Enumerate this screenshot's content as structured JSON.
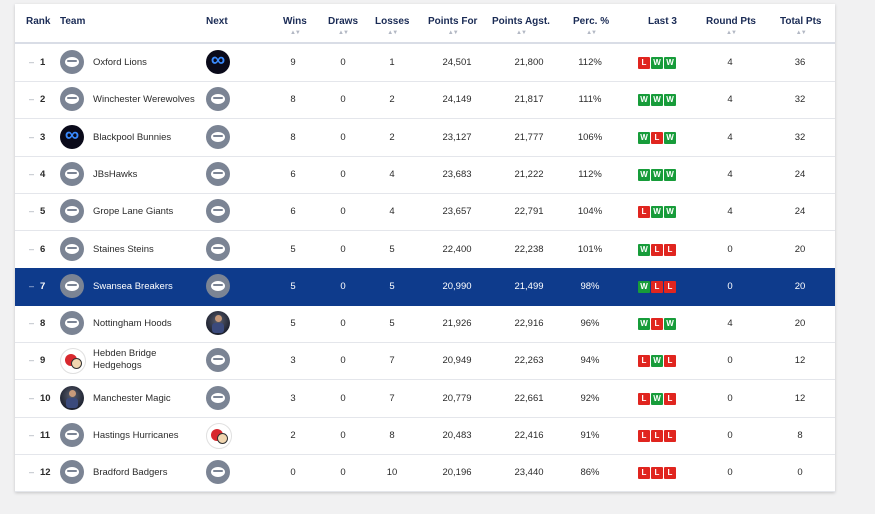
{
  "columns": {
    "rank": "Rank",
    "team": "Team",
    "next": "Next",
    "wins": "Wins",
    "draws": "Draws",
    "losses": "Losses",
    "points_for": "Points For",
    "points_against": "Points Agst.",
    "percentage": "Perc. %",
    "last3": "Last 3",
    "round_pts": "Round Pts",
    "total_pts": "Total Pts"
  },
  "rank_marker": "–",
  "sort_glyph": "▲▼",
  "colors": {
    "highlight_row": "#0e3b8c",
    "win_badge": "#179c3a",
    "loss_badge": "#e0251f",
    "header_text": "#1a2b55"
  },
  "highlighted_rank": 7,
  "rows": [
    {
      "rank": "1",
      "team": "Oxford Lions",
      "team_logo": "default-logo",
      "next_logo": "infinity-logo",
      "wins": "9",
      "draws": "0",
      "losses": "1",
      "pf": "24,501",
      "pa": "21,800",
      "pct": "112%",
      "last3": [
        "L",
        "W",
        "W"
      ],
      "round": "4",
      "total": "36"
    },
    {
      "rank": "2",
      "team": "Winchester Werewolves",
      "team_logo": "default-logo",
      "next_logo": "default-logo",
      "wins": "8",
      "draws": "0",
      "losses": "2",
      "pf": "24,149",
      "pa": "21,817",
      "pct": "111%",
      "last3": [
        "W",
        "W",
        "W"
      ],
      "round": "4",
      "total": "32"
    },
    {
      "rank": "3",
      "team": "Blackpool Bunnies",
      "team_logo": "infinity-logo",
      "next_logo": "default-logo",
      "wins": "8",
      "draws": "0",
      "losses": "2",
      "pf": "23,127",
      "pa": "21,777",
      "pct": "106%",
      "last3": [
        "W",
        "L",
        "W"
      ],
      "round": "4",
      "total": "32"
    },
    {
      "rank": "4",
      "team": "JBsHawks",
      "team_logo": "default-logo",
      "next_logo": "default-logo",
      "wins": "6",
      "draws": "0",
      "losses": "4",
      "pf": "23,683",
      "pa": "21,222",
      "pct": "112%",
      "last3": [
        "W",
        "W",
        "W"
      ],
      "round": "4",
      "total": "24"
    },
    {
      "rank": "5",
      "team": "Grope Lane Giants",
      "team_logo": "default-logo",
      "next_logo": "default-logo",
      "wins": "6",
      "draws": "0",
      "losses": "4",
      "pf": "23,657",
      "pa": "22,791",
      "pct": "104%",
      "last3": [
        "L",
        "W",
        "W"
      ],
      "round": "4",
      "total": "24"
    },
    {
      "rank": "6",
      "team": "Staines Steins",
      "team_logo": "default-logo",
      "next_logo": "default-logo",
      "wins": "5",
      "draws": "0",
      "losses": "5",
      "pf": "22,400",
      "pa": "22,238",
      "pct": "101%",
      "last3": [
        "W",
        "L",
        "L"
      ],
      "round": "0",
      "total": "20"
    },
    {
      "rank": "7",
      "team": "Swansea Breakers",
      "team_logo": "default-logo",
      "next_logo": "default-logo",
      "wins": "5",
      "draws": "0",
      "losses": "5",
      "pf": "20,990",
      "pa": "21,499",
      "pct": "98%",
      "last3": [
        "W",
        "L",
        "L"
      ],
      "round": "0",
      "total": "20"
    },
    {
      "rank": "8",
      "team": "Nottingham Hoods",
      "team_logo": "default-logo",
      "next_logo": "photo-logo",
      "wins": "5",
      "draws": "0",
      "losses": "5",
      "pf": "21,926",
      "pa": "22,916",
      "pct": "96%",
      "last3": [
        "W",
        "L",
        "W"
      ],
      "round": "4",
      "total": "20"
    },
    {
      "rank": "9",
      "team": "Hebden Bridge Hedgehogs",
      "team_logo": "hedgehog-logo",
      "next_logo": "default-logo",
      "wins": "3",
      "draws": "0",
      "losses": "7",
      "pf": "20,949",
      "pa": "22,263",
      "pct": "94%",
      "last3": [
        "L",
        "W",
        "L"
      ],
      "round": "0",
      "total": "12"
    },
    {
      "rank": "10",
      "team": "Manchester Magic",
      "team_logo": "photo-logo",
      "next_logo": "default-logo",
      "wins": "3",
      "draws": "0",
      "losses": "7",
      "pf": "20,779",
      "pa": "22,661",
      "pct": "92%",
      "last3": [
        "L",
        "W",
        "L"
      ],
      "round": "0",
      "total": "12"
    },
    {
      "rank": "11",
      "team": "Hastings Hurricanes",
      "team_logo": "default-logo",
      "next_logo": "hedgehog-logo",
      "wins": "2",
      "draws": "0",
      "losses": "8",
      "pf": "20,483",
      "pa": "22,416",
      "pct": "91%",
      "last3": [
        "L",
        "L",
        "L"
      ],
      "round": "0",
      "total": "8"
    },
    {
      "rank": "12",
      "team": "Bradford Badgers",
      "team_logo": "default-logo",
      "next_logo": "default-logo",
      "wins": "0",
      "draws": "0",
      "losses": "10",
      "pf": "20,196",
      "pa": "23,440",
      "pct": "86%",
      "last3": [
        "L",
        "L",
        "L"
      ],
      "round": "0",
      "total": "0"
    }
  ]
}
